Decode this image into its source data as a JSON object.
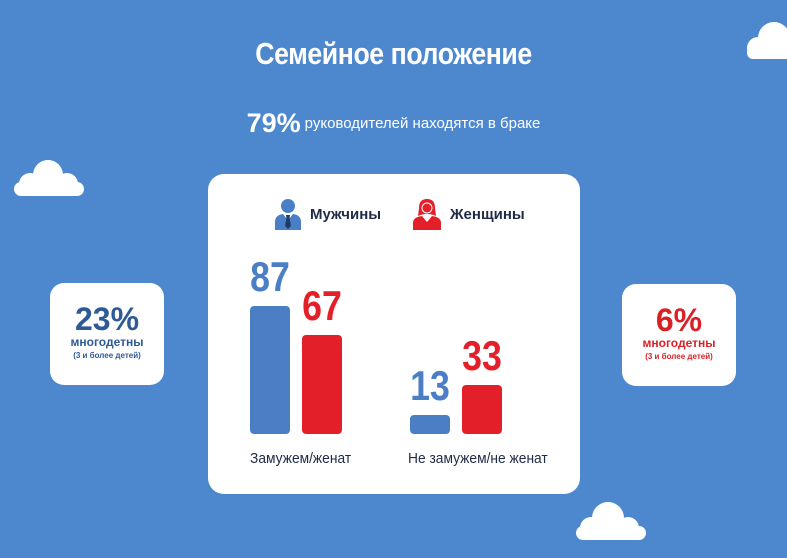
{
  "title": "Семейное положение",
  "subtitle": {
    "percent": "79%",
    "text": "руководителей  находятся в браке"
  },
  "left_card": {
    "value": "23%",
    "label": "многодетны",
    "note": "(3 и более детей)"
  },
  "right_card": {
    "value": "6%",
    "label": "многодетны",
    "note": "(3 и более детей)"
  },
  "colors": {
    "background": "#4d88cf",
    "men": "#4a7fc6",
    "women": "#e3202a",
    "card_text_blue": "#2e5a95"
  },
  "chart_data": {
    "type": "bar",
    "categories": [
      "Замужем/женат",
      "Не замужем/не женат"
    ],
    "series": [
      {
        "name": "Мужчины",
        "icon": "man-icon",
        "values": [
          87,
          13
        ]
      },
      {
        "name": "Женщины",
        "icon": "woman-icon",
        "values": [
          67,
          33
        ]
      }
    ],
    "data_labels": [
      [
        "87",
        "13"
      ],
      [
        "67",
        "33"
      ]
    ],
    "legend": "top",
    "grid": false
  }
}
